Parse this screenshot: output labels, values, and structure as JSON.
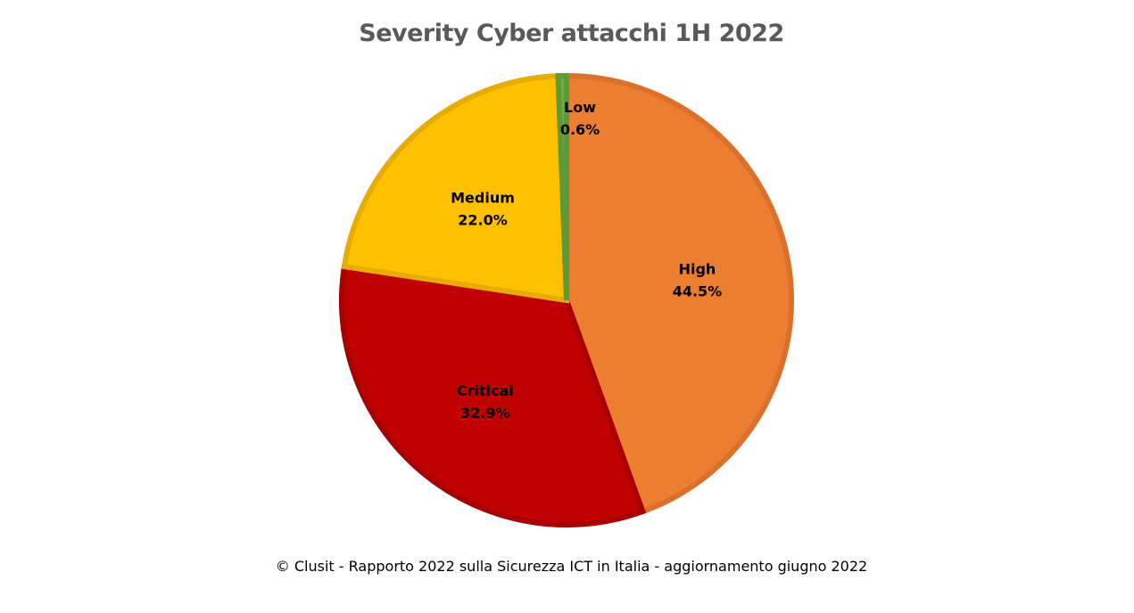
{
  "chart_data": {
    "type": "pie",
    "title": "Severity Cyber attacchi 1H 2022",
    "slices": [
      {
        "label": "High",
        "value": 44.5,
        "value_label": "44.5%",
        "color": "#ED7D31",
        "stroke": "#D9712C"
      },
      {
        "label": "Critical",
        "value": 32.9,
        "value_label": "32.9%",
        "color": "#C00000",
        "stroke": "#A80000"
      },
      {
        "label": "Medium",
        "value": 22.0,
        "value_label": "22.0%",
        "color": "#FFC000",
        "stroke": "#E6AD00"
      },
      {
        "label": "Low",
        "value": 0.6,
        "value_label": "0.6%",
        "color": "#70AD47",
        "stroke": "#5E9A3A"
      }
    ],
    "start_angle": "12 o'clock",
    "direction": "clockwise",
    "legend": "none"
  },
  "caption": "© Clusit - Rapporto 2022 sulla Sicurezza ICT in Italia - aggiornamento giugno 2022"
}
